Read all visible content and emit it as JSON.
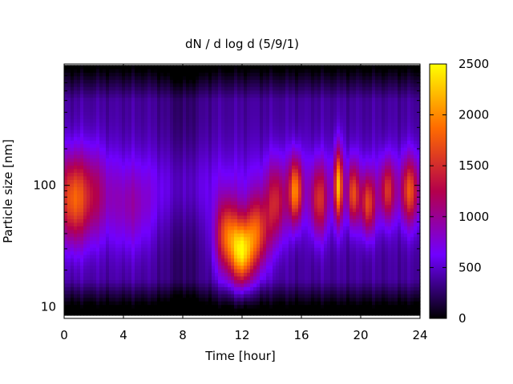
{
  "chart_data": {
    "type": "heatmap",
    "title": "dN / d log d (5/9/1)",
    "xlabel": "Time [hour]",
    "ylabel": "Particle size [nm]",
    "xlim": [
      0,
      24
    ],
    "ylim": [
      8,
      1000
    ],
    "y_scale": "log",
    "x_ticks": [
      0,
      4,
      8,
      12,
      16,
      20,
      24
    ],
    "x_tick_labels": [
      "0",
      "4",
      "8",
      "12",
      "16",
      "20",
      "24"
    ],
    "y_ticks": [
      10,
      100
    ],
    "y_tick_labels": [
      "10",
      "100"
    ],
    "colorbar": {
      "range": [
        0,
        2500
      ],
      "ticks": [
        0,
        500,
        1000,
        1500,
        2000,
        2500
      ],
      "tick_labels": [
        "0",
        "500",
        "1000",
        "1500",
        "2000",
        "2500"
      ],
      "colormap": [
        "#000000",
        "#7000ff",
        "#b4004b",
        "#ff6c00",
        "#ffff00"
      ]
    },
    "grid": false,
    "blobs": [
      {
        "t": 0.6,
        "t_width": 1.0,
        "d": 75,
        "d_width": 0.36,
        "peak": 1550
      },
      {
        "t": 2.0,
        "t_width": 1.0,
        "d": 80,
        "d_width": 0.38,
        "peak": 900
      },
      {
        "t": 4.5,
        "t_width": 1.5,
        "d": 60,
        "d_width": 0.35,
        "peak": 750
      },
      {
        "t": 11.0,
        "t_width": 0.8,
        "d": 38,
        "d_width": 0.3,
        "peak": 1750
      },
      {
        "t": 12.0,
        "t_width": 0.7,
        "d": 28,
        "d_width": 0.26,
        "peak": 2050
      },
      {
        "t": 13.0,
        "t_width": 0.8,
        "d": 40,
        "d_width": 0.3,
        "peak": 1650
      },
      {
        "t": 14.3,
        "t_width": 0.7,
        "d": 70,
        "d_width": 0.33,
        "peak": 1250
      },
      {
        "t": 15.6,
        "t_width": 0.45,
        "d": 90,
        "d_width": 0.27,
        "peak": 1800
      },
      {
        "t": 17.2,
        "t_width": 0.6,
        "d": 75,
        "d_width": 0.3,
        "peak": 1350
      },
      {
        "t": 18.5,
        "t_width": 0.3,
        "d": 100,
        "d_width": 0.3,
        "peak": 1950
      },
      {
        "t": 19.5,
        "t_width": 0.4,
        "d": 85,
        "d_width": 0.25,
        "peak": 1500
      },
      {
        "t": 20.5,
        "t_width": 0.5,
        "d": 70,
        "d_width": 0.25,
        "peak": 1500
      },
      {
        "t": 21.8,
        "t_width": 0.5,
        "d": 90,
        "d_width": 0.25,
        "peak": 1350
      },
      {
        "t": 23.3,
        "t_width": 0.6,
        "d": 90,
        "d_width": 0.27,
        "peak": 1500
      }
    ]
  }
}
